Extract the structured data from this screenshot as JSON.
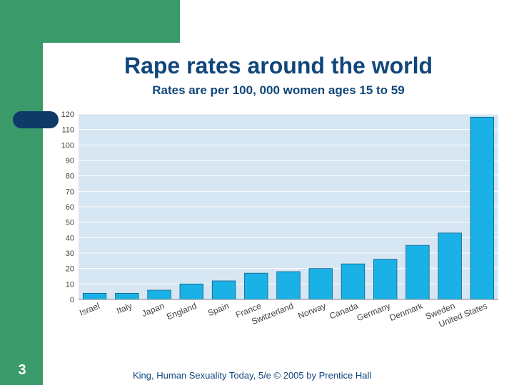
{
  "slide": {
    "title": "Rape rates around the world",
    "subtitle": "Rates are per 100, 000 women ages 15 to 59",
    "number": "3",
    "footer": "King, Human Sexuality Today, 5/e © 2005 by Prentice Hall"
  },
  "colors": {
    "green": "#3a9a6a",
    "navy": "#0d3a66",
    "text": "#11467a",
    "plot_bg": "#d6e6f2",
    "bar": "#1ab2e6",
    "bar_edge": "#0e5f8a"
  },
  "chart_data": {
    "type": "bar",
    "title": "Rape rates around the world",
    "subtitle": "Rates are per 100, 000 women ages 15 to 59",
    "xlabel": "",
    "ylabel": "",
    "ylim": [
      0,
      120
    ],
    "yticks": [
      0,
      10,
      20,
      30,
      40,
      50,
      60,
      70,
      80,
      90,
      100,
      110,
      120
    ],
    "grid": true,
    "categories": [
      "Israel",
      "Italy",
      "Japan",
      "England",
      "Spain",
      "France",
      "Switzerland",
      "Norway",
      "Canada",
      "Germany",
      "Denmark",
      "Sweden",
      "United States"
    ],
    "values": [
      4,
      4,
      6,
      10,
      12,
      17,
      18,
      20,
      23,
      26,
      35,
      43,
      118
    ]
  }
}
